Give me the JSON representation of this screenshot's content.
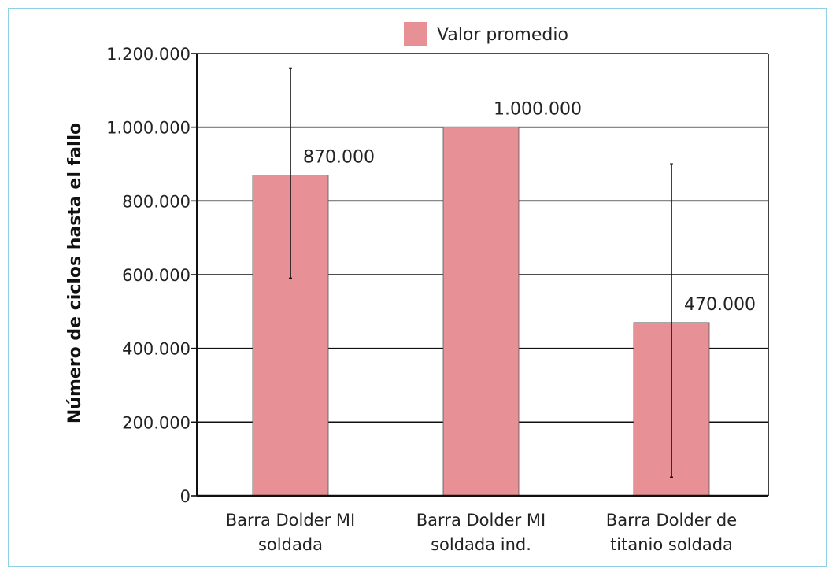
{
  "chart_data": {
    "type": "bar",
    "categories": [
      [
        "Barra Dolder MI",
        "soldada"
      ],
      [
        "Barra Dolder MI",
        "soldada ind."
      ],
      [
        "Barra Dolder de",
        "titanio soldada"
      ]
    ],
    "series": [
      {
        "name": "Valor promedio",
        "values": [
          870000,
          1000000,
          470000
        ],
        "error_low": [
          590000,
          1000000,
          50000
        ],
        "error_high": [
          1160000,
          1000000,
          900000
        ],
        "data_labels": [
          "870.000",
          "1.000.000",
          "470.000"
        ]
      }
    ],
    "ylabel": "Número de ciclos hasta el fallo",
    "ylim": [
      0,
      1200000
    ],
    "yticks": [
      0,
      200000,
      400000,
      600000,
      800000,
      1000000,
      1200000
    ],
    "ytick_labels": [
      "0",
      "200.000",
      "400.000",
      "600.000",
      "800.000",
      "1.000.000",
      "1.200.000"
    ],
    "grid": true,
    "legend_position": "top",
    "colors": {
      "bar": "#e79095",
      "frame": "#8fd0e4",
      "axis": "#111111"
    }
  }
}
